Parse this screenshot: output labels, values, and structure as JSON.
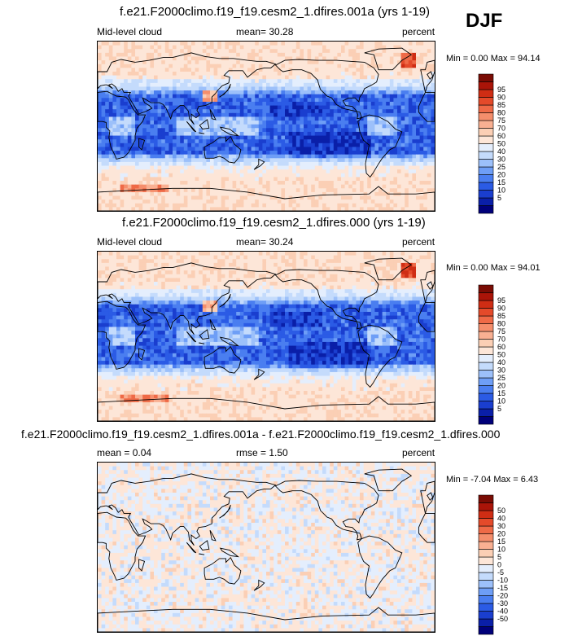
{
  "season": "DJF",
  "colors": {
    "cloud_levels": [
      "#00007a",
      "#0a1fa8",
      "#1a3ecf",
      "#2b5be5",
      "#4a7ef0",
      "#6e9ef6",
      "#9cc0fa",
      "#c4dbfc",
      "#e4eefd",
      "#fde6d8",
      "#fbcfb5",
      "#f9b092",
      "#f58e6c",
      "#ef6a47",
      "#e44a2a",
      "#cf2d14",
      "#aa1408",
      "#7a0c04"
    ],
    "diff_levels": [
      "#00007a",
      "#0a1fa8",
      "#1a3ecf",
      "#2b5be5",
      "#4a7ef0",
      "#6e9ef6",
      "#9cc0fa",
      "#c4dbfc",
      "#e4eefd",
      "#fde6d8",
      "#fbcfb5",
      "#f9b092",
      "#f58e6c",
      "#ef6a47",
      "#e44a2a",
      "#cf2d14",
      "#aa1408",
      "#7a0c04"
    ],
    "land_outline": "#000000"
  },
  "panels": [
    {
      "title": "f.e21.F2000climo.f19_f19.cesm2_1.dfires.001a (yrs 1-19)",
      "left_label": "Mid-level cloud",
      "center_label": "mean=  30.28",
      "right_label": "percent",
      "stats": "Min =   0.00 Max =  94.14"
    },
    {
      "title": "f.e21.F2000climo.f19_f19.cesm2_1.dfires.000 (yrs 1-19)",
      "left_label": "Mid-level cloud",
      "center_label": "mean=  30.24",
      "right_label": "percent",
      "stats": "Min =   0.00 Max =  94.01"
    },
    {
      "title": "f.e21.F2000climo.f19_f19.cesm2_1.dfires.001a - f.e21.F2000climo.f19_f19.cesm2_1.dfires.000",
      "left_label": "mean =   0.04",
      "center_label": "rmse =   1.50",
      "right_label": "percent",
      "stats": "Min =  -7.04 Max =   6.43"
    }
  ],
  "chart_data": [
    {
      "type": "heatmap",
      "title": "f.e21.F2000climo.f19_f19.cesm2_1.dfires.001a (yrs 1-19)",
      "variable": "Mid-level cloud",
      "units": "percent",
      "mean": 30.28,
      "min": 0.0,
      "max": 94.14,
      "colorbar_levels": [
        5,
        10,
        15,
        20,
        25,
        30,
        40,
        50,
        60,
        70,
        75,
        80,
        85,
        90,
        95
      ]
    },
    {
      "type": "heatmap",
      "title": "f.e21.F2000climo.f19_f19.cesm2_1.dfires.000 (yrs 1-19)",
      "variable": "Mid-level cloud",
      "units": "percent",
      "mean": 30.24,
      "min": 0.0,
      "max": 94.01,
      "colorbar_levels": [
        5,
        10,
        15,
        20,
        25,
        30,
        40,
        50,
        60,
        70,
        75,
        80,
        85,
        90,
        95
      ]
    },
    {
      "type": "heatmap",
      "title": "f.e21.F2000climo.f19_f19.cesm2_1.dfires.001a - f.e21.F2000climo.f19_f19.cesm2_1.dfires.000",
      "units": "percent",
      "mean": 0.04,
      "rmse": 1.5,
      "min": -7.04,
      "max": 6.43,
      "colorbar_levels": [
        -50,
        -40,
        -30,
        -20,
        -15,
        -10,
        -5,
        0,
        5,
        10,
        15,
        20,
        30,
        40,
        50
      ]
    }
  ]
}
